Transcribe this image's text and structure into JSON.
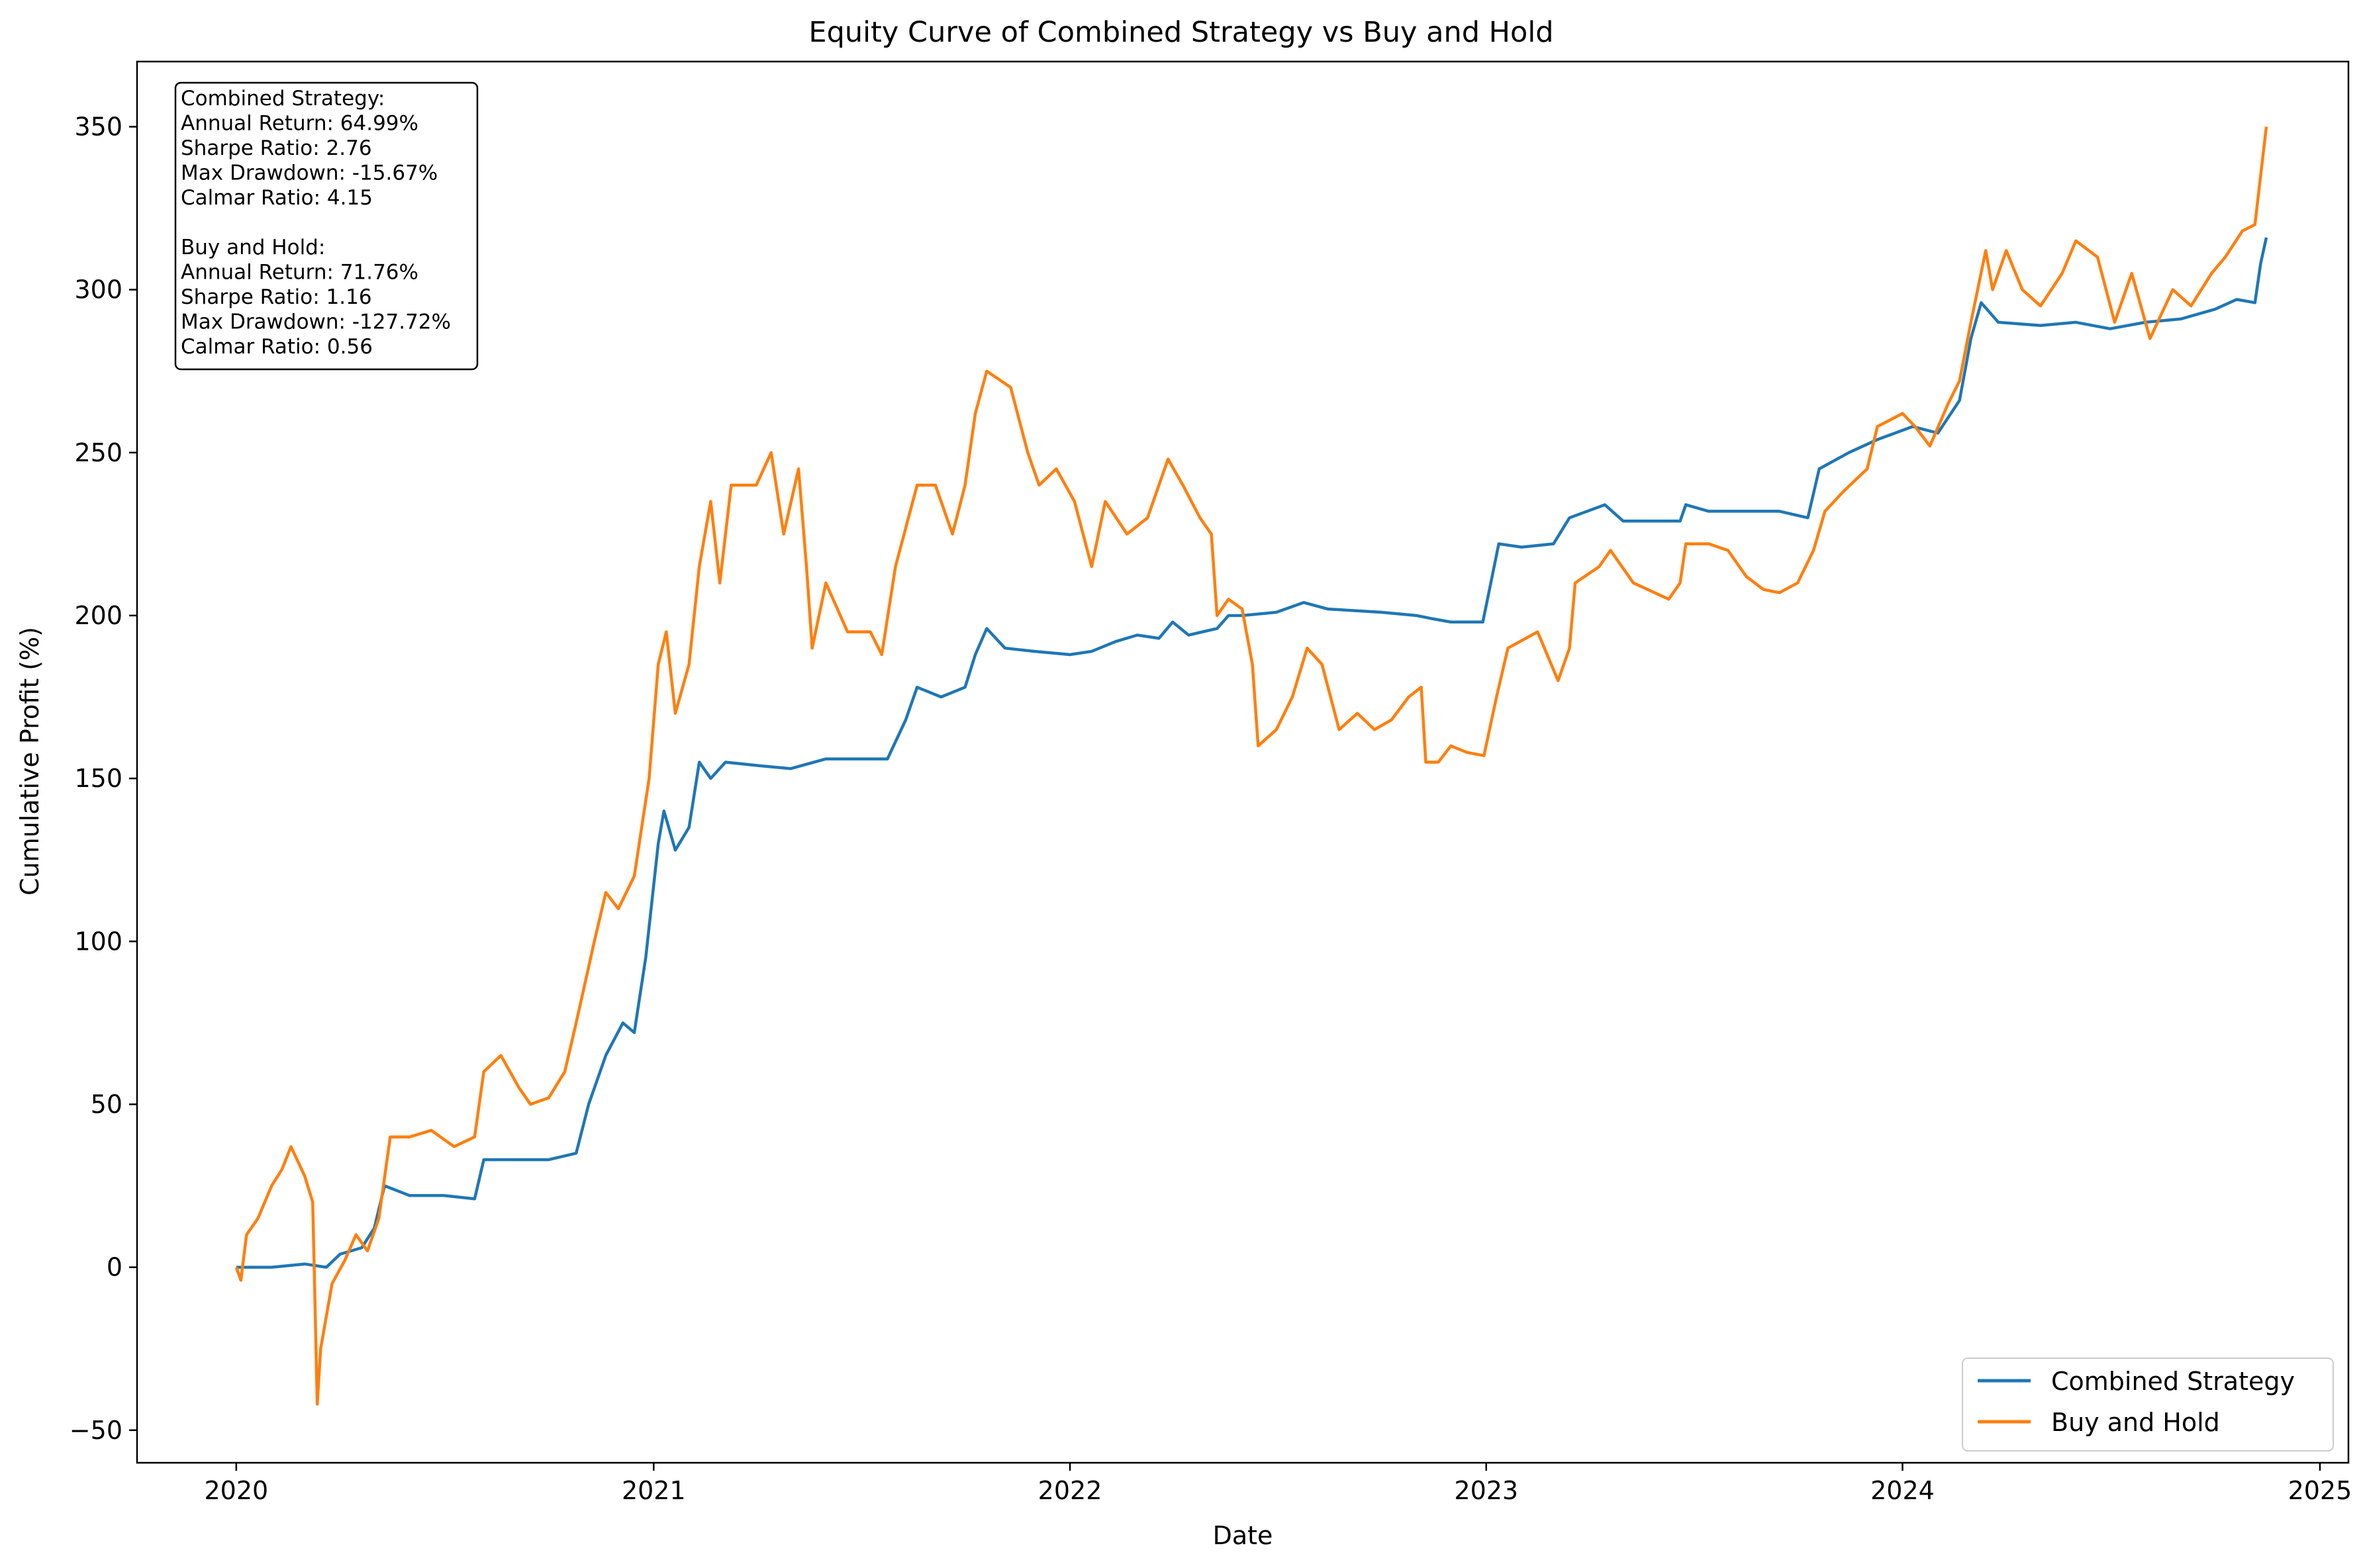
{
  "chart_data": {
    "type": "line",
    "title": "Equity Curve of Combined Strategy vs Buy and Hold",
    "xlabel": "Date",
    "ylabel": "Cumulative Profit (%)",
    "xlim": [
      "2019-10-06",
      "2025-01-26"
    ],
    "ylim": [
      -60,
      370
    ],
    "x_ticks": [
      "2020",
      "2021",
      "2022",
      "2023",
      "2024",
      "2025"
    ],
    "y_ticks": [
      "−50",
      "0",
      "50",
      "100",
      "150",
      "200",
      "250",
      "300",
      "350"
    ],
    "grid": false,
    "legend_position": "lower right",
    "stats_box": [
      "Combined Strategy:",
      "Annual Return: 64.99%",
      "Sharpe Ratio: 2.76",
      "Max Drawdown: -15.67%",
      "Calmar Ratio: 4.15",
      "",
      "Buy and Hold:",
      "Annual Return: 71.76%",
      "Sharpe Ratio: 1.16",
      "Max Drawdown: -127.72%",
      "Calmar Ratio: 0.56"
    ],
    "series": [
      {
        "name": "Combined Strategy",
        "color": "#1f77b4",
        "points": [
          [
            "2020-01-01",
            0
          ],
          [
            "2020-02-01",
            0
          ],
          [
            "2020-03-01",
            1
          ],
          [
            "2020-03-20",
            0
          ],
          [
            "2020-04-01",
            4
          ],
          [
            "2020-04-20",
            6
          ],
          [
            "2020-05-01",
            12
          ],
          [
            "2020-05-10",
            25
          ],
          [
            "2020-06-01",
            22
          ],
          [
            "2020-07-01",
            22
          ],
          [
            "2020-07-28",
            21
          ],
          [
            "2020-08-05",
            33
          ],
          [
            "2020-09-01",
            33
          ],
          [
            "2020-10-01",
            33
          ],
          [
            "2020-10-25",
            35
          ],
          [
            "2020-11-05",
            50
          ],
          [
            "2020-11-20",
            65
          ],
          [
            "2020-12-05",
            75
          ],
          [
            "2020-12-15",
            72
          ],
          [
            "2020-12-25",
            95
          ],
          [
            "2021-01-05",
            130
          ],
          [
            "2021-01-10",
            140
          ],
          [
            "2021-01-20",
            128
          ],
          [
            "2021-02-01",
            135
          ],
          [
            "2021-02-10",
            155
          ],
          [
            "2021-02-20",
            150
          ],
          [
            "2021-03-05",
            155
          ],
          [
            "2021-04-01",
            154
          ],
          [
            "2021-05-01",
            153
          ],
          [
            "2021-06-01",
            156
          ],
          [
            "2021-07-01",
            156
          ],
          [
            "2021-07-25",
            156
          ],
          [
            "2021-08-10",
            168
          ],
          [
            "2021-08-20",
            178
          ],
          [
            "2021-09-10",
            175
          ],
          [
            "2021-10-01",
            178
          ],
          [
            "2021-10-10",
            188
          ],
          [
            "2021-10-20",
            196
          ],
          [
            "2021-11-05",
            190
          ],
          [
            "2021-12-01",
            189
          ],
          [
            "2022-01-01",
            188
          ],
          [
            "2022-01-20",
            189
          ],
          [
            "2022-02-10",
            192
          ],
          [
            "2022-03-01",
            194
          ],
          [
            "2022-03-20",
            193
          ],
          [
            "2022-04-01",
            198
          ],
          [
            "2022-04-15",
            194
          ],
          [
            "2022-05-10",
            196
          ],
          [
            "2022-05-20",
            200
          ],
          [
            "2022-06-01",
            200
          ],
          [
            "2022-07-01",
            201
          ],
          [
            "2022-07-25",
            204
          ],
          [
            "2022-08-15",
            202
          ],
          [
            "2022-10-01",
            201
          ],
          [
            "2022-11-01",
            200
          ],
          [
            "2022-11-15",
            199
          ],
          [
            "2022-12-01",
            198
          ],
          [
            "2022-12-29",
            198
          ],
          [
            "2023-01-05",
            210
          ],
          [
            "2023-01-12",
            222
          ],
          [
            "2023-02-01",
            221
          ],
          [
            "2023-03-01",
            222
          ],
          [
            "2023-03-15",
            230
          ],
          [
            "2023-04-15",
            234
          ],
          [
            "2023-05-01",
            229
          ],
          [
            "2023-06-01",
            229
          ],
          [
            "2023-06-20",
            229
          ],
          [
            "2023-06-25",
            234
          ],
          [
            "2023-07-15",
            232
          ],
          [
            "2023-08-15",
            232
          ],
          [
            "2023-09-15",
            232
          ],
          [
            "2023-10-10",
            230
          ],
          [
            "2023-10-20",
            245
          ],
          [
            "2023-11-15",
            250
          ],
          [
            "2023-12-10",
            254
          ],
          [
            "2024-01-10",
            258
          ],
          [
            "2024-02-01",
            256
          ],
          [
            "2024-02-20",
            266
          ],
          [
            "2024-03-01",
            285
          ],
          [
            "2024-03-10",
            296
          ],
          [
            "2024-03-25",
            290
          ],
          [
            "2024-05-01",
            289
          ],
          [
            "2024-06-01",
            290
          ],
          [
            "2024-07-01",
            288
          ],
          [
            "2024-08-01",
            290
          ],
          [
            "2024-09-01",
            291
          ],
          [
            "2024-10-01",
            294
          ],
          [
            "2024-10-20",
            297
          ],
          [
            "2024-11-05",
            296
          ],
          [
            "2024-11-10",
            308
          ],
          [
            "2024-11-15",
            316
          ]
        ]
      },
      {
        "name": "Buy and Hold",
        "color": "#ff7f0e",
        "points": [
          [
            "2020-01-01",
            0
          ],
          [
            "2020-01-05",
            -4
          ],
          [
            "2020-01-10",
            10
          ],
          [
            "2020-01-20",
            15
          ],
          [
            "2020-02-01",
            25
          ],
          [
            "2020-02-10",
            30
          ],
          [
            "2020-02-18",
            37
          ],
          [
            "2020-03-01",
            28
          ],
          [
            "2020-03-08",
            20
          ],
          [
            "2020-03-12",
            -42
          ],
          [
            "2020-03-15",
            -25
          ],
          [
            "2020-03-25",
            -5
          ],
          [
            "2020-04-05",
            2
          ],
          [
            "2020-04-15",
            10
          ],
          [
            "2020-04-25",
            5
          ],
          [
            "2020-05-05",
            15
          ],
          [
            "2020-05-15",
            40
          ],
          [
            "2020-06-01",
            40
          ],
          [
            "2020-06-20",
            42
          ],
          [
            "2020-07-10",
            37
          ],
          [
            "2020-07-28",
            40
          ],
          [
            "2020-08-05",
            60
          ],
          [
            "2020-08-20",
            65
          ],
          [
            "2020-09-05",
            55
          ],
          [
            "2020-09-15",
            50
          ],
          [
            "2020-10-01",
            52
          ],
          [
            "2020-10-15",
            60
          ],
          [
            "2020-10-25",
            75
          ],
          [
            "2020-11-10",
            100
          ],
          [
            "2020-11-20",
            115
          ],
          [
            "2020-12-01",
            110
          ],
          [
            "2020-12-15",
            120
          ],
          [
            "2020-12-28",
            150
          ],
          [
            "2021-01-05",
            185
          ],
          [
            "2021-01-12",
            195
          ],
          [
            "2021-01-20",
            170
          ],
          [
            "2021-02-01",
            185
          ],
          [
            "2021-02-10",
            215
          ],
          [
            "2021-02-20",
            235
          ],
          [
            "2021-02-28",
            210
          ],
          [
            "2021-03-10",
            240
          ],
          [
            "2021-04-01",
            240
          ],
          [
            "2021-04-14",
            250
          ],
          [
            "2021-04-25",
            225
          ],
          [
            "2021-05-08",
            245
          ],
          [
            "2021-05-15",
            215
          ],
          [
            "2021-05-20",
            190
          ],
          [
            "2021-06-01",
            210
          ],
          [
            "2021-06-20",
            195
          ],
          [
            "2021-07-10",
            195
          ],
          [
            "2021-07-20",
            188
          ],
          [
            "2021-08-01",
            215
          ],
          [
            "2021-08-20",
            240
          ],
          [
            "2021-09-05",
            240
          ],
          [
            "2021-09-20",
            225
          ],
          [
            "2021-10-01",
            240
          ],
          [
            "2021-10-10",
            262
          ],
          [
            "2021-10-20",
            275
          ],
          [
            "2021-11-10",
            270
          ],
          [
            "2021-11-25",
            250
          ],
          [
            "2021-12-05",
            240
          ],
          [
            "2021-12-20",
            245
          ],
          [
            "2022-01-05",
            235
          ],
          [
            "2022-01-20",
            215
          ],
          [
            "2022-02-01",
            235
          ],
          [
            "2022-02-20",
            225
          ],
          [
            "2022-03-10",
            230
          ],
          [
            "2022-03-28",
            248
          ],
          [
            "2022-04-10",
            240
          ],
          [
            "2022-04-25",
            230
          ],
          [
            "2022-05-05",
            225
          ],
          [
            "2022-05-10",
            200
          ],
          [
            "2022-05-20",
            205
          ],
          [
            "2022-06-01",
            202
          ],
          [
            "2022-06-10",
            185
          ],
          [
            "2022-06-15",
            160
          ],
          [
            "2022-07-01",
            165
          ],
          [
            "2022-07-15",
            175
          ],
          [
            "2022-07-28",
            190
          ],
          [
            "2022-08-10",
            185
          ],
          [
            "2022-08-25",
            165
          ],
          [
            "2022-09-10",
            170
          ],
          [
            "2022-09-25",
            165
          ],
          [
            "2022-10-10",
            168
          ],
          [
            "2022-10-25",
            175
          ],
          [
            "2022-11-05",
            178
          ],
          [
            "2022-11-09",
            155
          ],
          [
            "2022-11-20",
            155
          ],
          [
            "2022-12-01",
            160
          ],
          [
            "2022-12-15",
            158
          ],
          [
            "2022-12-30",
            157
          ],
          [
            "2023-01-10",
            175
          ],
          [
            "2023-01-20",
            190
          ],
          [
            "2023-02-15",
            195
          ],
          [
            "2023-03-05",
            180
          ],
          [
            "2023-03-15",
            190
          ],
          [
            "2023-03-20",
            210
          ],
          [
            "2023-04-10",
            215
          ],
          [
            "2023-04-20",
            220
          ],
          [
            "2023-05-10",
            210
          ],
          [
            "2023-06-10",
            205
          ],
          [
            "2023-06-20",
            210
          ],
          [
            "2023-06-25",
            222
          ],
          [
            "2023-07-15",
            222
          ],
          [
            "2023-08-01",
            220
          ],
          [
            "2023-08-17",
            212
          ],
          [
            "2023-09-01",
            208
          ],
          [
            "2023-09-15",
            207
          ],
          [
            "2023-10-01",
            210
          ],
          [
            "2023-10-15",
            220
          ],
          [
            "2023-10-25",
            232
          ],
          [
            "2023-11-10",
            238
          ],
          [
            "2023-12-01",
            245
          ],
          [
            "2023-12-10",
            258
          ],
          [
            "2024-01-01",
            262
          ],
          [
            "2024-01-12",
            258
          ],
          [
            "2024-01-25",
            252
          ],
          [
            "2024-02-10",
            265
          ],
          [
            "2024-02-20",
            272
          ],
          [
            "2024-03-01",
            290
          ],
          [
            "2024-03-14",
            312
          ],
          [
            "2024-03-20",
            300
          ],
          [
            "2024-04-01",
            312
          ],
          [
            "2024-04-15",
            300
          ],
          [
            "2024-05-01",
            295
          ],
          [
            "2024-05-20",
            305
          ],
          [
            "2024-06-01",
            315
          ],
          [
            "2024-06-20",
            310
          ],
          [
            "2024-07-05",
            290
          ],
          [
            "2024-07-20",
            305
          ],
          [
            "2024-08-05",
            285
          ],
          [
            "2024-08-25",
            300
          ],
          [
            "2024-09-10",
            295
          ],
          [
            "2024-09-28",
            305
          ],
          [
            "2024-10-10",
            310
          ],
          [
            "2024-10-25",
            318
          ],
          [
            "2024-11-05",
            320
          ],
          [
            "2024-11-10",
            335
          ],
          [
            "2024-11-15",
            350
          ]
        ]
      }
    ]
  }
}
